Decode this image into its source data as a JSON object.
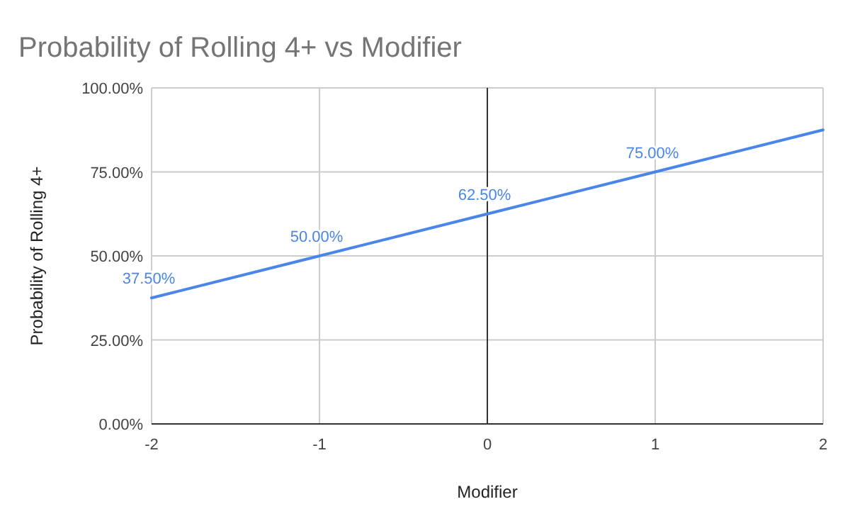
{
  "chart_data": {
    "type": "line",
    "title": "Probability of Rolling 4+ vs Modifier",
    "xlabel": "Modifier",
    "ylabel": "Probability of Rolling 4+",
    "x": [
      -2,
      -1,
      0,
      1,
      2
    ],
    "series": [
      {
        "color": "#4a86e8",
        "values": [
          37.5,
          50,
          62.5,
          75,
          87.5
        ],
        "value_labels": [
          "37.50%",
          "50.00%",
          "62.50%",
          "75.00%",
          null
        ]
      }
    ],
    "xlim": [
      -2,
      2
    ],
    "xticks": [
      -2,
      -1,
      0,
      1,
      2
    ],
    "ylim": [
      0,
      100
    ],
    "yticks": [
      {
        "value": 0,
        "label": "0.00%"
      },
      {
        "value": 25,
        "label": "25.00%"
      },
      {
        "value": 50,
        "label": "50.00%"
      },
      {
        "value": 75,
        "label": "75.00%"
      },
      {
        "value": 100,
        "label": "100.00%"
      }
    ],
    "grid": true,
    "marker": "none",
    "line_style": "solid"
  }
}
